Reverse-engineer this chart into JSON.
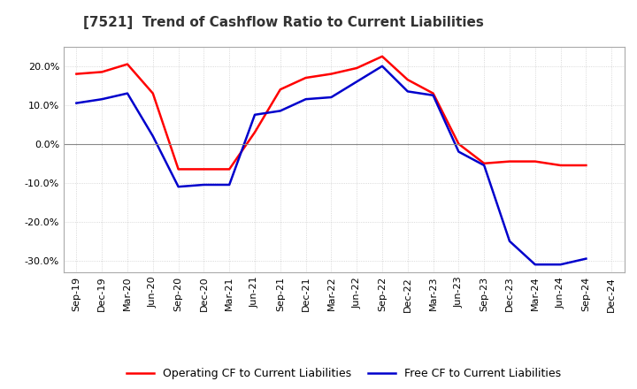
{
  "title": "[7521]  Trend of Cashflow Ratio to Current Liabilities",
  "x_labels": [
    "Sep-19",
    "Dec-19",
    "Mar-20",
    "Jun-20",
    "Sep-20",
    "Dec-20",
    "Mar-21",
    "Jun-21",
    "Sep-21",
    "Dec-21",
    "Mar-22",
    "Jun-22",
    "Sep-22",
    "Dec-22",
    "Mar-23",
    "Jun-23",
    "Sep-23",
    "Dec-23",
    "Mar-24",
    "Jun-24",
    "Sep-24",
    "Dec-24"
  ],
  "operating_cf": [
    18.0,
    18.5,
    20.5,
    13.0,
    -6.5,
    -6.5,
    -6.5,
    3.0,
    14.0,
    17.0,
    18.0,
    19.5,
    22.5,
    16.5,
    13.0,
    0.0,
    -5.0,
    -4.5,
    -4.5,
    -5.5,
    -5.5,
    null
  ],
  "free_cf": [
    10.5,
    11.5,
    13.0,
    2.0,
    -11.0,
    -10.5,
    -10.5,
    7.5,
    8.5,
    11.5,
    12.0,
    16.0,
    20.0,
    13.5,
    12.5,
    -2.0,
    -5.5,
    -25.0,
    -31.0,
    -31.0,
    -29.5,
    null
  ],
  "ylim": [
    -33,
    25
  ],
  "yticks": [
    -30,
    -20,
    -10,
    0,
    10,
    20
  ],
  "operating_color": "#FF0000",
  "free_color": "#0000CC",
  "background_color": "#FFFFFF",
  "plot_bg_color": "#FFFFFF",
  "grid_color": "#AAAAAA",
  "legend_operating": "Operating CF to Current Liabilities",
  "legend_free": "Free CF to Current Liabilities",
  "line_width": 1.8,
  "title_fontsize": 11,
  "tick_fontsize": 8
}
